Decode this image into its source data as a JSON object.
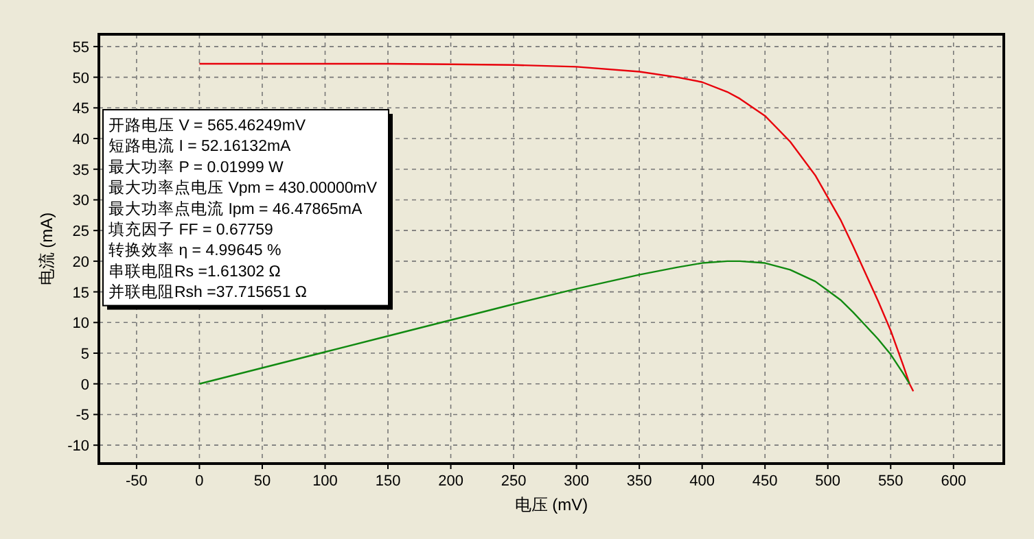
{
  "chart_data": {
    "type": "line",
    "xlabel": "电压 (mV)",
    "ylabel": "电流 (mA)",
    "xlim": [
      -80,
      640
    ],
    "ylim": [
      -13,
      57
    ],
    "xticks": [
      -50,
      0,
      50,
      100,
      150,
      200,
      250,
      300,
      350,
      400,
      450,
      500,
      550,
      600
    ],
    "yticks": [
      -10,
      -5,
      0,
      5,
      10,
      15,
      20,
      25,
      30,
      35,
      40,
      45,
      50,
      55
    ],
    "grid": true,
    "line_style": "solid",
    "marker": "none",
    "series": [
      {
        "color": "#e8000b",
        "x": [
          0,
          50,
          100,
          150,
          200,
          250,
          300,
          350,
          380,
          400,
          420,
          430,
          450,
          470,
          490,
          500,
          510,
          520,
          530,
          540,
          550,
          560,
          565,
          568
        ],
        "values": [
          52.2,
          52.2,
          52.2,
          52.2,
          52.1,
          52.0,
          51.7,
          50.9,
          50.0,
          49.2,
          47.6,
          46.5,
          43.7,
          39.5,
          34,
          30.4,
          26.8,
          22.5,
          18,
          13.5,
          8.7,
          3,
          0,
          -1.2
        ]
      },
      {
        "color": "#118a11",
        "x": [
          0,
          50,
          100,
          150,
          200,
          250,
          300,
          350,
          380,
          400,
          420,
          430,
          450,
          470,
          490,
          500,
          510,
          520,
          530,
          540,
          550,
          560,
          565
        ],
        "values": [
          0,
          2.6,
          5.2,
          7.8,
          10.4,
          13.0,
          15.5,
          17.8,
          19.0,
          19.7,
          20.0,
          20.0,
          19.7,
          18.6,
          16.7,
          15.2,
          13.7,
          11.7,
          9.5,
          7.3,
          4.8,
          1.7,
          0
        ]
      }
    ],
    "annotations": [
      "开路电压 V = 565.46249mV",
      "短路电流 I = 52.16132mA",
      "最大功率 P = 0.01999 W",
      "最大功率点电压 Vpm = 430.00000mV",
      "最大功率点电流 Ipm = 46.47865mA",
      "填充因子 FF = 0.67759",
      "转换效率 η = 4.99645 %",
      "串联电阻Rs =1.61302 Ω",
      "并联电阻Rsh =37.715651 Ω"
    ]
  }
}
